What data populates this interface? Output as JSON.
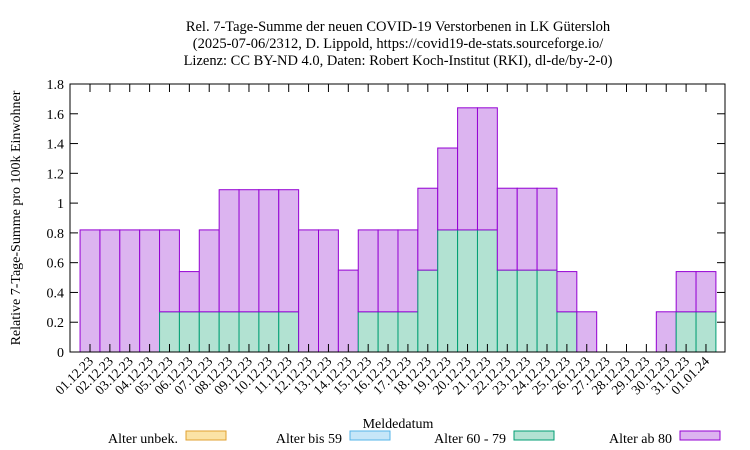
{
  "chart_data": {
    "type": "bar",
    "stacked": true,
    "title_lines": [
      "Rel. 7-Tage-Summe der neuen COVID-19 Verstorbenen in LK Gütersloh",
      "(2025-07-06/2312, D. Lippold, https://covid19-de-stats.sourceforge.io/",
      "Lizenz: CC BY-ND 4.0, Daten: Robert Koch-Institut (RKI), dl-de/by-2-0)"
    ],
    "xlabel": "Meldedatum",
    "ylabel": "Relative 7-Tage-Summe pro 100k Einwohner",
    "ylim": [
      0,
      1.8
    ],
    "yticks": [
      "0",
      "0.2",
      "0.4",
      "0.6",
      "0.8",
      "1",
      "1.2",
      "1.4",
      "1.6",
      "1.8"
    ],
    "grid": false,
    "legend_position": "bottom",
    "categories": [
      "01.12.23",
      "02.12.23",
      "03.12.23",
      "04.12.23",
      "05.12.23",
      "06.12.23",
      "07.12.23",
      "08.12.23",
      "09.12.23",
      "10.12.23",
      "11.12.23",
      "12.12.23",
      "13.12.23",
      "14.12.23",
      "15.12.23",
      "16.12.23",
      "17.12.23",
      "18.12.23",
      "19.12.23",
      "20.12.23",
      "21.12.23",
      "22.12.23",
      "23.12.23",
      "24.12.23",
      "25.12.23",
      "26.12.23",
      "27.12.23",
      "28.12.23",
      "29.12.23",
      "30.12.23",
      "31.12.23",
      "01.01.24"
    ],
    "series": [
      {
        "name": "Alter unbek.",
        "fill": "#fbe3a6",
        "stroke": "#e0a030",
        "values": [
          0,
          0,
          0,
          0,
          0,
          0,
          0,
          0,
          0,
          0,
          0,
          0,
          0,
          0,
          0,
          0,
          0,
          0,
          0,
          0,
          0,
          0,
          0,
          0,
          0,
          0,
          0,
          0,
          0,
          0,
          0,
          0
        ]
      },
      {
        "name": "Alter bis 59",
        "fill": "#c6e6f8",
        "stroke": "#56b4e9",
        "values": [
          0,
          0,
          0,
          0,
          0,
          0,
          0,
          0,
          0,
          0,
          0,
          0,
          0,
          0,
          0,
          0,
          0,
          0,
          0,
          0,
          0,
          0,
          0,
          0,
          0,
          0,
          0,
          0,
          0,
          0,
          0,
          0
        ]
      },
      {
        "name": "Alter 60 - 79",
        "fill": "#b2e2d2",
        "stroke": "#009e73",
        "values": [
          0,
          0,
          0,
          0,
          0.27,
          0.27,
          0.27,
          0.27,
          0.27,
          0.27,
          0.27,
          0,
          0,
          0,
          0.27,
          0.27,
          0.27,
          0.55,
          0.82,
          0.82,
          0.82,
          0.55,
          0.55,
          0.55,
          0.27,
          0,
          0,
          0,
          0,
          0,
          0.27,
          0.27
        ]
      },
      {
        "name": "Alter ab 80",
        "fill": "#dcb4f0",
        "stroke": "#9400d3",
        "values": [
          0.82,
          0.82,
          0.82,
          0.82,
          0.55,
          0.27,
          0.55,
          0.82,
          0.82,
          0.82,
          0.82,
          0.82,
          0.82,
          0.55,
          0.55,
          0.55,
          0.55,
          0.55,
          0.55,
          0.82,
          0.82,
          0.55,
          0.55,
          0.55,
          0.27,
          0.27,
          0,
          0,
          0,
          0.27,
          0.27,
          0.27
        ]
      }
    ]
  }
}
